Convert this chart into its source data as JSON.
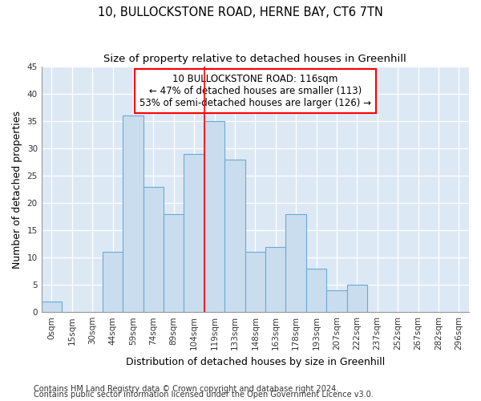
{
  "title1": "10, BULLOCKSTONE ROAD, HERNE BAY, CT6 7TN",
  "title2": "Size of property relative to detached houses in Greenhill",
  "xlabel": "Distribution of detached houses by size in Greenhill",
  "ylabel": "Number of detached properties",
  "bar_labels": [
    "0sqm",
    "15sqm",
    "30sqm",
    "44sqm",
    "59sqm",
    "74sqm",
    "89sqm",
    "104sqm",
    "119sqm",
    "133sqm",
    "148sqm",
    "163sqm",
    "178sqm",
    "193sqm",
    "207sqm",
    "222sqm",
    "237sqm",
    "252sqm",
    "267sqm",
    "282sqm",
    "296sqm"
  ],
  "bar_values": [
    2,
    0,
    0,
    11,
    36,
    23,
    18,
    29,
    35,
    28,
    11,
    12,
    18,
    8,
    4,
    5,
    0,
    0,
    0,
    0,
    0
  ],
  "bar_color": "#c9ddef",
  "bar_edge_color": "#6aaad4",
  "plot_bg_color": "#dce9f5",
  "fig_bg_color": "#ffffff",
  "grid_color": "#ffffff",
  "ylim": [
    0,
    45
  ],
  "yticks": [
    0,
    5,
    10,
    15,
    20,
    25,
    30,
    35,
    40,
    45
  ],
  "annotation_text1": "10 BULLOCKSTONE ROAD: 116sqm",
  "annotation_text2": "← 47% of detached houses are smaller (113)",
  "annotation_text3": "53% of semi-detached houses are larger (126) →",
  "footnote1": "Contains HM Land Registry data © Crown copyright and database right 2024.",
  "footnote2": "Contains public sector information licensed under the Open Government Licence v3.0.",
  "title_fontsize": 10.5,
  "subtitle_fontsize": 9.5,
  "axis_label_fontsize": 9,
  "tick_fontsize": 7.5,
  "annotation_fontsize": 8.5,
  "footnote_fontsize": 7,
  "red_line_xindex": 8
}
